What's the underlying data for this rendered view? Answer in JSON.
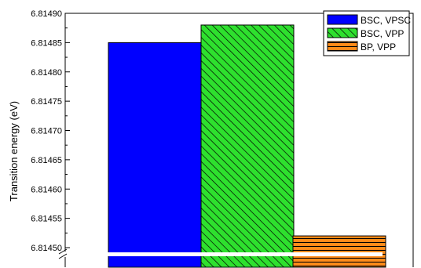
{
  "chart_data": {
    "type": "bar",
    "title": "",
    "xlabel": "",
    "ylabel": "Transition energy (eV)",
    "ylim": [
      6.81447,
      6.8149
    ],
    "yticks": [
      "6.81450",
      "6.81455",
      "6.81460",
      "6.81465",
      "6.81470",
      "6.81475",
      "6.81480",
      "6.81485",
      "6.81490"
    ],
    "axis_break": true,
    "legend_position": "top-right",
    "series": [
      {
        "name": "BSC, VPSC",
        "value": 6.81485,
        "color": "#0000ff",
        "pattern": "solid"
      },
      {
        "name": "BSC, VPP",
        "value": 6.81488,
        "color": "#2ee02e",
        "pattern": "diagonal-hatch"
      },
      {
        "name": "BP, VPP",
        "value": 6.81452,
        "color": "#ff8c1a",
        "pattern": "horizontal-hatch"
      }
    ]
  }
}
